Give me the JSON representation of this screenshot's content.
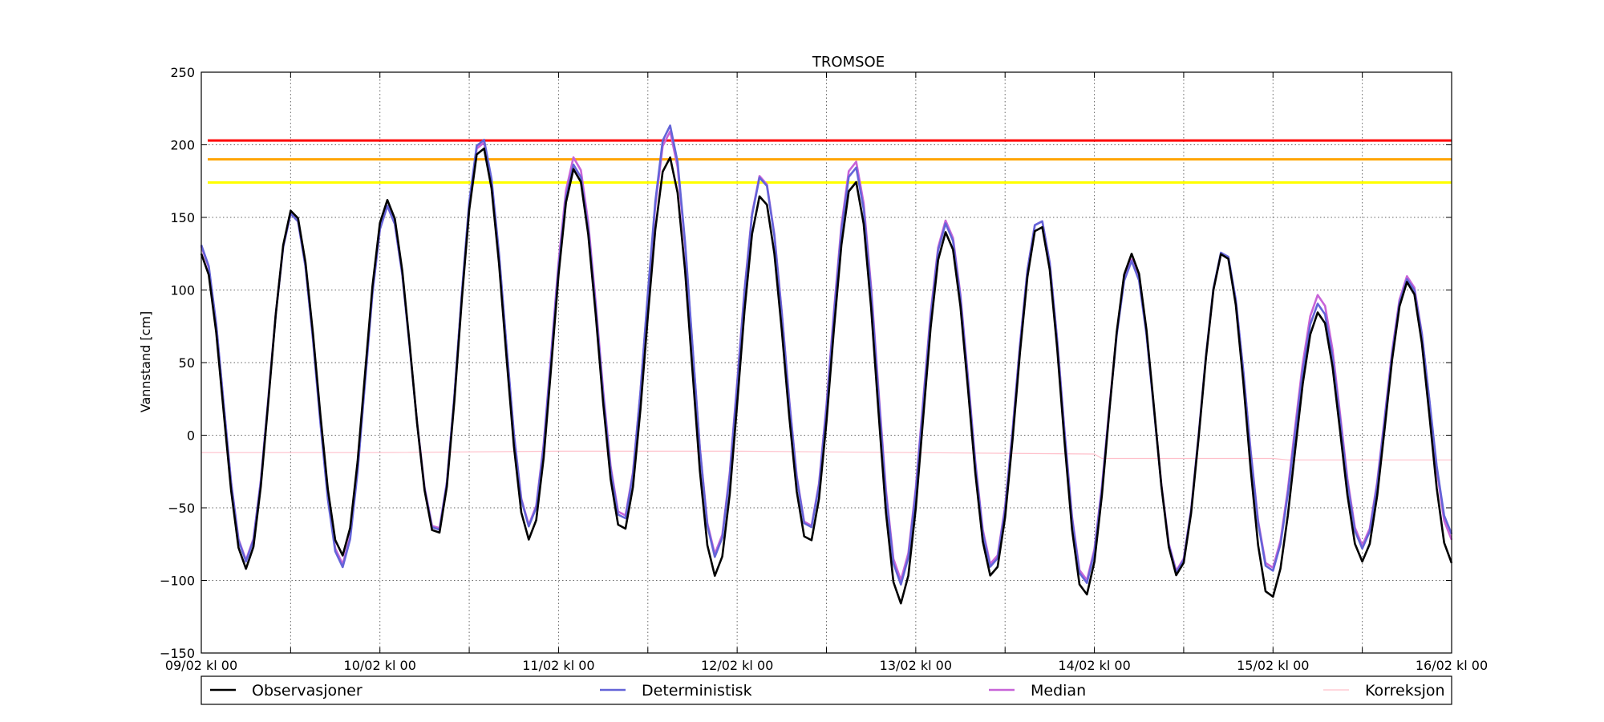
{
  "chart_data": {
    "type": "line",
    "title": "TROMSOE",
    "xlabel": "",
    "ylabel": "Vannstand [cm]",
    "ylim": [
      -150,
      250
    ],
    "yticks": [
      250,
      200,
      150,
      100,
      50,
      0,
      -50,
      -100,
      -150
    ],
    "ytick_labels": [
      "250",
      "200",
      "150",
      "100",
      "50",
      "0",
      "−50",
      "−100",
      "−150"
    ],
    "x_unit": "hours since 09/02 kl 00",
    "xlim": [
      0,
      168
    ],
    "xtick_labels": [
      "09/02 kl 00",
      "10/02 kl 00",
      "11/02 kl 00",
      "12/02 kl 00",
      "13/02 kl 00",
      "14/02 kl 00",
      "15/02 kl 00",
      "16/02 kl 00"
    ],
    "grid": true,
    "legend_position": "bottom, below plot",
    "thresholds": [
      {
        "value": 203,
        "color": "#ff0000"
      },
      {
        "value": 190,
        "color": "#ffa500"
      },
      {
        "value": 174,
        "color": "#ffff00"
      }
    ],
    "series": [
      {
        "name": "Observasjoner",
        "color": "#000000",
        "extrema": [
          [
            0,
            125
          ],
          [
            6,
            -92
          ],
          [
            12.3,
            156
          ],
          [
            18.9,
            -83
          ],
          [
            25,
            162
          ],
          [
            31.6,
            -70
          ],
          [
            37.6,
            200
          ],
          [
            44.1,
            -72
          ],
          [
            50.2,
            184
          ],
          [
            56.6,
            -67
          ],
          [
            62.8,
            192
          ],
          [
            69.1,
            -97
          ],
          [
            75.3,
            166
          ],
          [
            81.6,
            -75
          ],
          [
            87.7,
            176
          ],
          [
            93.9,
            -116
          ],
          [
            100.1,
            140
          ],
          [
            106.3,
            -98
          ],
          [
            112.6,
            146
          ],
          [
            118.7,
            -111
          ],
          [
            125,
            125
          ],
          [
            131.2,
            -97
          ],
          [
            137.4,
            127
          ],
          [
            143.6,
            -113
          ],
          [
            150.2,
            85
          ],
          [
            156,
            -87
          ],
          [
            162.2,
            106
          ],
          [
            168,
            -88
          ]
        ]
      },
      {
        "name": "Deterministisk",
        "color": "#6464d8",
        "extrema": [
          [
            0,
            131
          ],
          [
            6,
            -87
          ],
          [
            12.3,
            154
          ],
          [
            18.9,
            -91
          ],
          [
            25,
            158
          ],
          [
            31.6,
            -68
          ],
          [
            37.6,
            206
          ],
          [
            44.1,
            -63
          ],
          [
            50.2,
            187
          ],
          [
            56.6,
            -60
          ],
          [
            62.8,
            214
          ],
          [
            69.1,
            -84
          ],
          [
            75.3,
            179
          ],
          [
            81.6,
            -66
          ],
          [
            87.7,
            186
          ],
          [
            93.9,
            -103
          ],
          [
            100.1,
            146
          ],
          [
            106.3,
            -92
          ],
          [
            112.6,
            150
          ],
          [
            118.7,
            -103
          ],
          [
            125,
            120
          ],
          [
            131.2,
            -95
          ],
          [
            137.4,
            128
          ],
          [
            143.6,
            -95
          ],
          [
            150.2,
            91
          ],
          [
            156,
            -78
          ],
          [
            162.2,
            108
          ],
          [
            168,
            -68
          ]
        ]
      },
      {
        "name": "Median",
        "color": "#c864d8",
        "extrema": [
          [
            0,
            130
          ],
          [
            6,
            -86
          ],
          [
            12.3,
            154
          ],
          [
            18.9,
            -89
          ],
          [
            25,
            158
          ],
          [
            31.6,
            -67
          ],
          [
            37.6,
            204
          ],
          [
            44.1,
            -62
          ],
          [
            50.2,
            192
          ],
          [
            56.6,
            -58
          ],
          [
            62.8,
            210
          ],
          [
            69.1,
            -82
          ],
          [
            75.3,
            180
          ],
          [
            81.6,
            -65
          ],
          [
            87.7,
            190
          ],
          [
            93.9,
            -100
          ],
          [
            100.1,
            148
          ],
          [
            106.3,
            -90
          ],
          [
            112.6,
            150
          ],
          [
            118.7,
            -101
          ],
          [
            125,
            121
          ],
          [
            131.2,
            -94
          ],
          [
            137.4,
            127
          ],
          [
            143.6,
            -93
          ],
          [
            150.2,
            97
          ],
          [
            156,
            -76
          ],
          [
            162.2,
            110
          ],
          [
            168,
            -72
          ]
        ]
      },
      {
        "name": "Korreksjon",
        "color": "#ffc0cb",
        "points": [
          [
            0,
            -12
          ],
          [
            24,
            -12
          ],
          [
            48,
            -11
          ],
          [
            72,
            -11
          ],
          [
            96,
            -12
          ],
          [
            120,
            -13
          ],
          [
            121,
            -16
          ],
          [
            144,
            -16
          ],
          [
            146,
            -17
          ],
          [
            168,
            -17
          ]
        ]
      }
    ]
  }
}
